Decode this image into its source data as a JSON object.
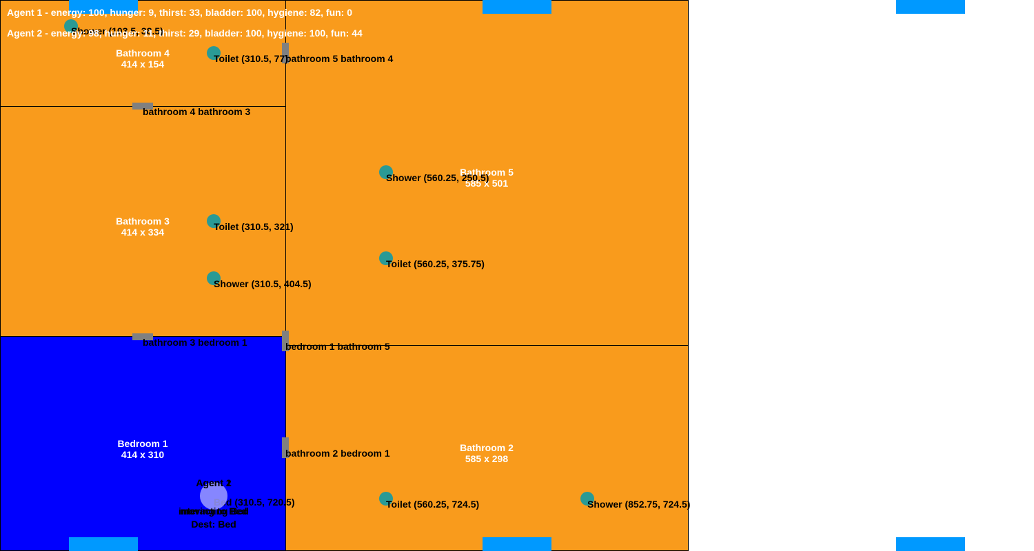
{
  "colors": {
    "room_orange": "#f99b1c",
    "room_blue": "#0000ff",
    "object_teal": "#2a9a95",
    "door_gray": "#808080",
    "window_blue": "#0099ff",
    "agent_lavender": "#a0a0ff"
  },
  "status": {
    "agent1": "Agent 1 - energy: 100, hunger: 9, thirst: 33, bladder: 100, hygiene: 82, fun: 0",
    "agent2": "Agent 2 - energy: 98, hunger: 11, thirst: 29, bladder: 100, hygiene: 100, fun: 44"
  },
  "rooms": {
    "bathroom4": {
      "name": "Bathroom 4",
      "size": "414 x 154"
    },
    "bathroom3": {
      "name": "Bathroom 3",
      "size": "414 x 334"
    },
    "bathroom5": {
      "name": "Bathroom 5",
      "size": "585 x 501"
    },
    "bedroom1": {
      "name": "Bedroom 1",
      "size": "414 x 310"
    },
    "bathroom2": {
      "name": "Bathroom 2",
      "size": "585 x 298"
    }
  },
  "objects": {
    "b4_shower": "Shower (103.5, 38.5)",
    "b4_toilet": "Toilet (310.5, 77)",
    "b3_toilet": "Toilet (310.5, 321)",
    "b3_shower": "Shower (310.5, 404.5)",
    "b5_shower": "Shower (560.25, 250.5)",
    "b5_toilet": "Toilet (560.25, 375.75)",
    "b2_toilet": "Toilet (560.25, 724.5)",
    "b2_shower": "Shower (852.75, 724.5)",
    "bd1_bed": "Bed (310.5, 720.5)"
  },
  "doors": {
    "b5_b4": "bathroom 5 bathroom 4",
    "b4_b3": "bathroom 4 bathroom 3",
    "b3_bd1": "bathroom 3 bedroom 1",
    "bd1_b5": "bedroom 1 bathroom 5",
    "b2_bd1": "bathroom 2 bedroom 1"
  },
  "agents": {
    "agent1": {
      "name": "Agent 1",
      "activity": "interacting Bed",
      "dest": "Dest: Bed"
    },
    "agent2": {
      "name": "Agent 2",
      "activity": "moving to Bed",
      "dest": "Dest: Bed"
    }
  }
}
